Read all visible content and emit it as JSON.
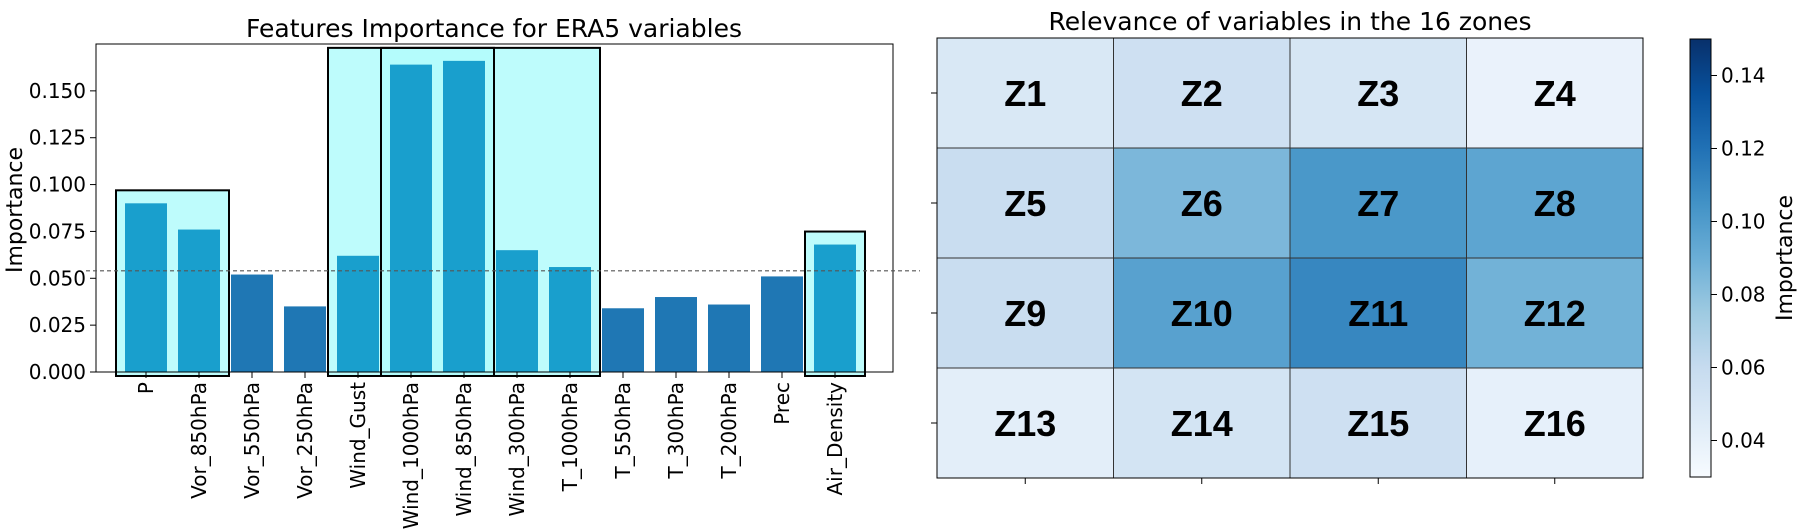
{
  "chart_data": [
    {
      "type": "bar",
      "title": "Features Importance for ERA5 variables",
      "xlabel": "",
      "ylabel": "Importance",
      "categories": [
        "P",
        "Vor_850hPa",
        "Vor_550hPa",
        "Vor_250hPa",
        "Wind_Gust",
        "Wind_1000hPa",
        "Wind_850hPa",
        "Wind_300hPa",
        "T_1000hPa",
        "T_550hPa",
        "T_300hPa",
        "T_200hPa",
        "Prec",
        "Air_Density"
      ],
      "values": [
        0.09,
        0.076,
        0.052,
        0.035,
        0.062,
        0.164,
        0.166,
        0.065,
        0.056,
        0.034,
        0.04,
        0.036,
        0.051,
        0.068
      ],
      "highlighted": [
        true,
        true,
        false,
        false,
        true,
        true,
        true,
        true,
        true,
        false,
        false,
        false,
        false,
        true
      ],
      "highlight_groups": [
        [
          0,
          1
        ],
        [
          4,
          8
        ],
        [
          5,
          6
        ],
        [
          13,
          13
        ]
      ],
      "ylim": [
        0,
        0.175
      ],
      "yticks": [
        "0.000",
        "0.025",
        "0.050",
        "0.075",
        "0.100",
        "0.125",
        "0.150"
      ],
      "reference_line": 0.054,
      "colors": {
        "bar": "#1f77b4",
        "highlight_bar": "#199fcd",
        "highlight_fill": "#b3fbfb",
        "reference": "#555555"
      }
    },
    {
      "type": "heatmap",
      "title": "Relevance of variables in the 16 zones",
      "rows": 4,
      "cols": 4,
      "cell_labels": [
        "Z1",
        "Z2",
        "Z3",
        "Z4",
        "Z5",
        "Z6",
        "Z7",
        "Z8",
        "Z9",
        "Z10",
        "Z11",
        "Z12",
        "Z13",
        "Z14",
        "Z15",
        "Z16"
      ],
      "values": [
        0.048,
        0.055,
        0.05,
        0.038,
        0.058,
        0.085,
        0.102,
        0.095,
        0.058,
        0.097,
        0.11,
        0.088,
        0.042,
        0.052,
        0.055,
        0.04
      ],
      "colorbar": {
        "label": "Importance",
        "range": [
          0.03,
          0.15
        ],
        "ticks": [
          "0.04",
          "0.06",
          "0.08",
          "0.10",
          "0.12",
          "0.14"
        ],
        "colormap": "Blues"
      }
    }
  ]
}
